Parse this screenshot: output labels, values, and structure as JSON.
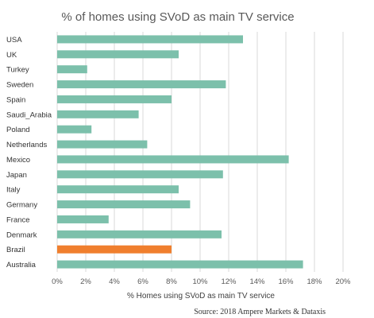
{
  "chart_data": {
    "type": "bar",
    "orientation": "horizontal",
    "title": "% of homes using SVoD as main TV service",
    "xlabel": "% Homes using SVoD as main TV service",
    "ylabel": "",
    "categories": [
      "USA",
      "UK",
      "Turkey",
      "Sweden",
      "Spain",
      "Saudi_Arabia",
      "Poland",
      "Netherlands",
      "Mexico",
      "Japan",
      "Italy",
      "Germany",
      "France",
      "Denmark",
      "Brazil",
      "Australia"
    ],
    "values": [
      13.0,
      8.5,
      2.1,
      11.8,
      8.0,
      5.7,
      2.4,
      6.3,
      16.2,
      11.6,
      8.5,
      9.3,
      3.6,
      11.5,
      8.0,
      17.2
    ],
    "xlim": [
      0,
      20
    ],
    "xticks": [
      "0%",
      "2%",
      "4%",
      "6%",
      "8%",
      "10%",
      "12%",
      "14%",
      "16%",
      "18%",
      "20%"
    ],
    "grid": true,
    "legend": "none",
    "colors": {
      "default": "#7cc0ab",
      "highlight": "#f07f2e"
    },
    "highlight_category": "Brazil",
    "source": "Source: 2018 Ampere Markets & Dataxis"
  }
}
